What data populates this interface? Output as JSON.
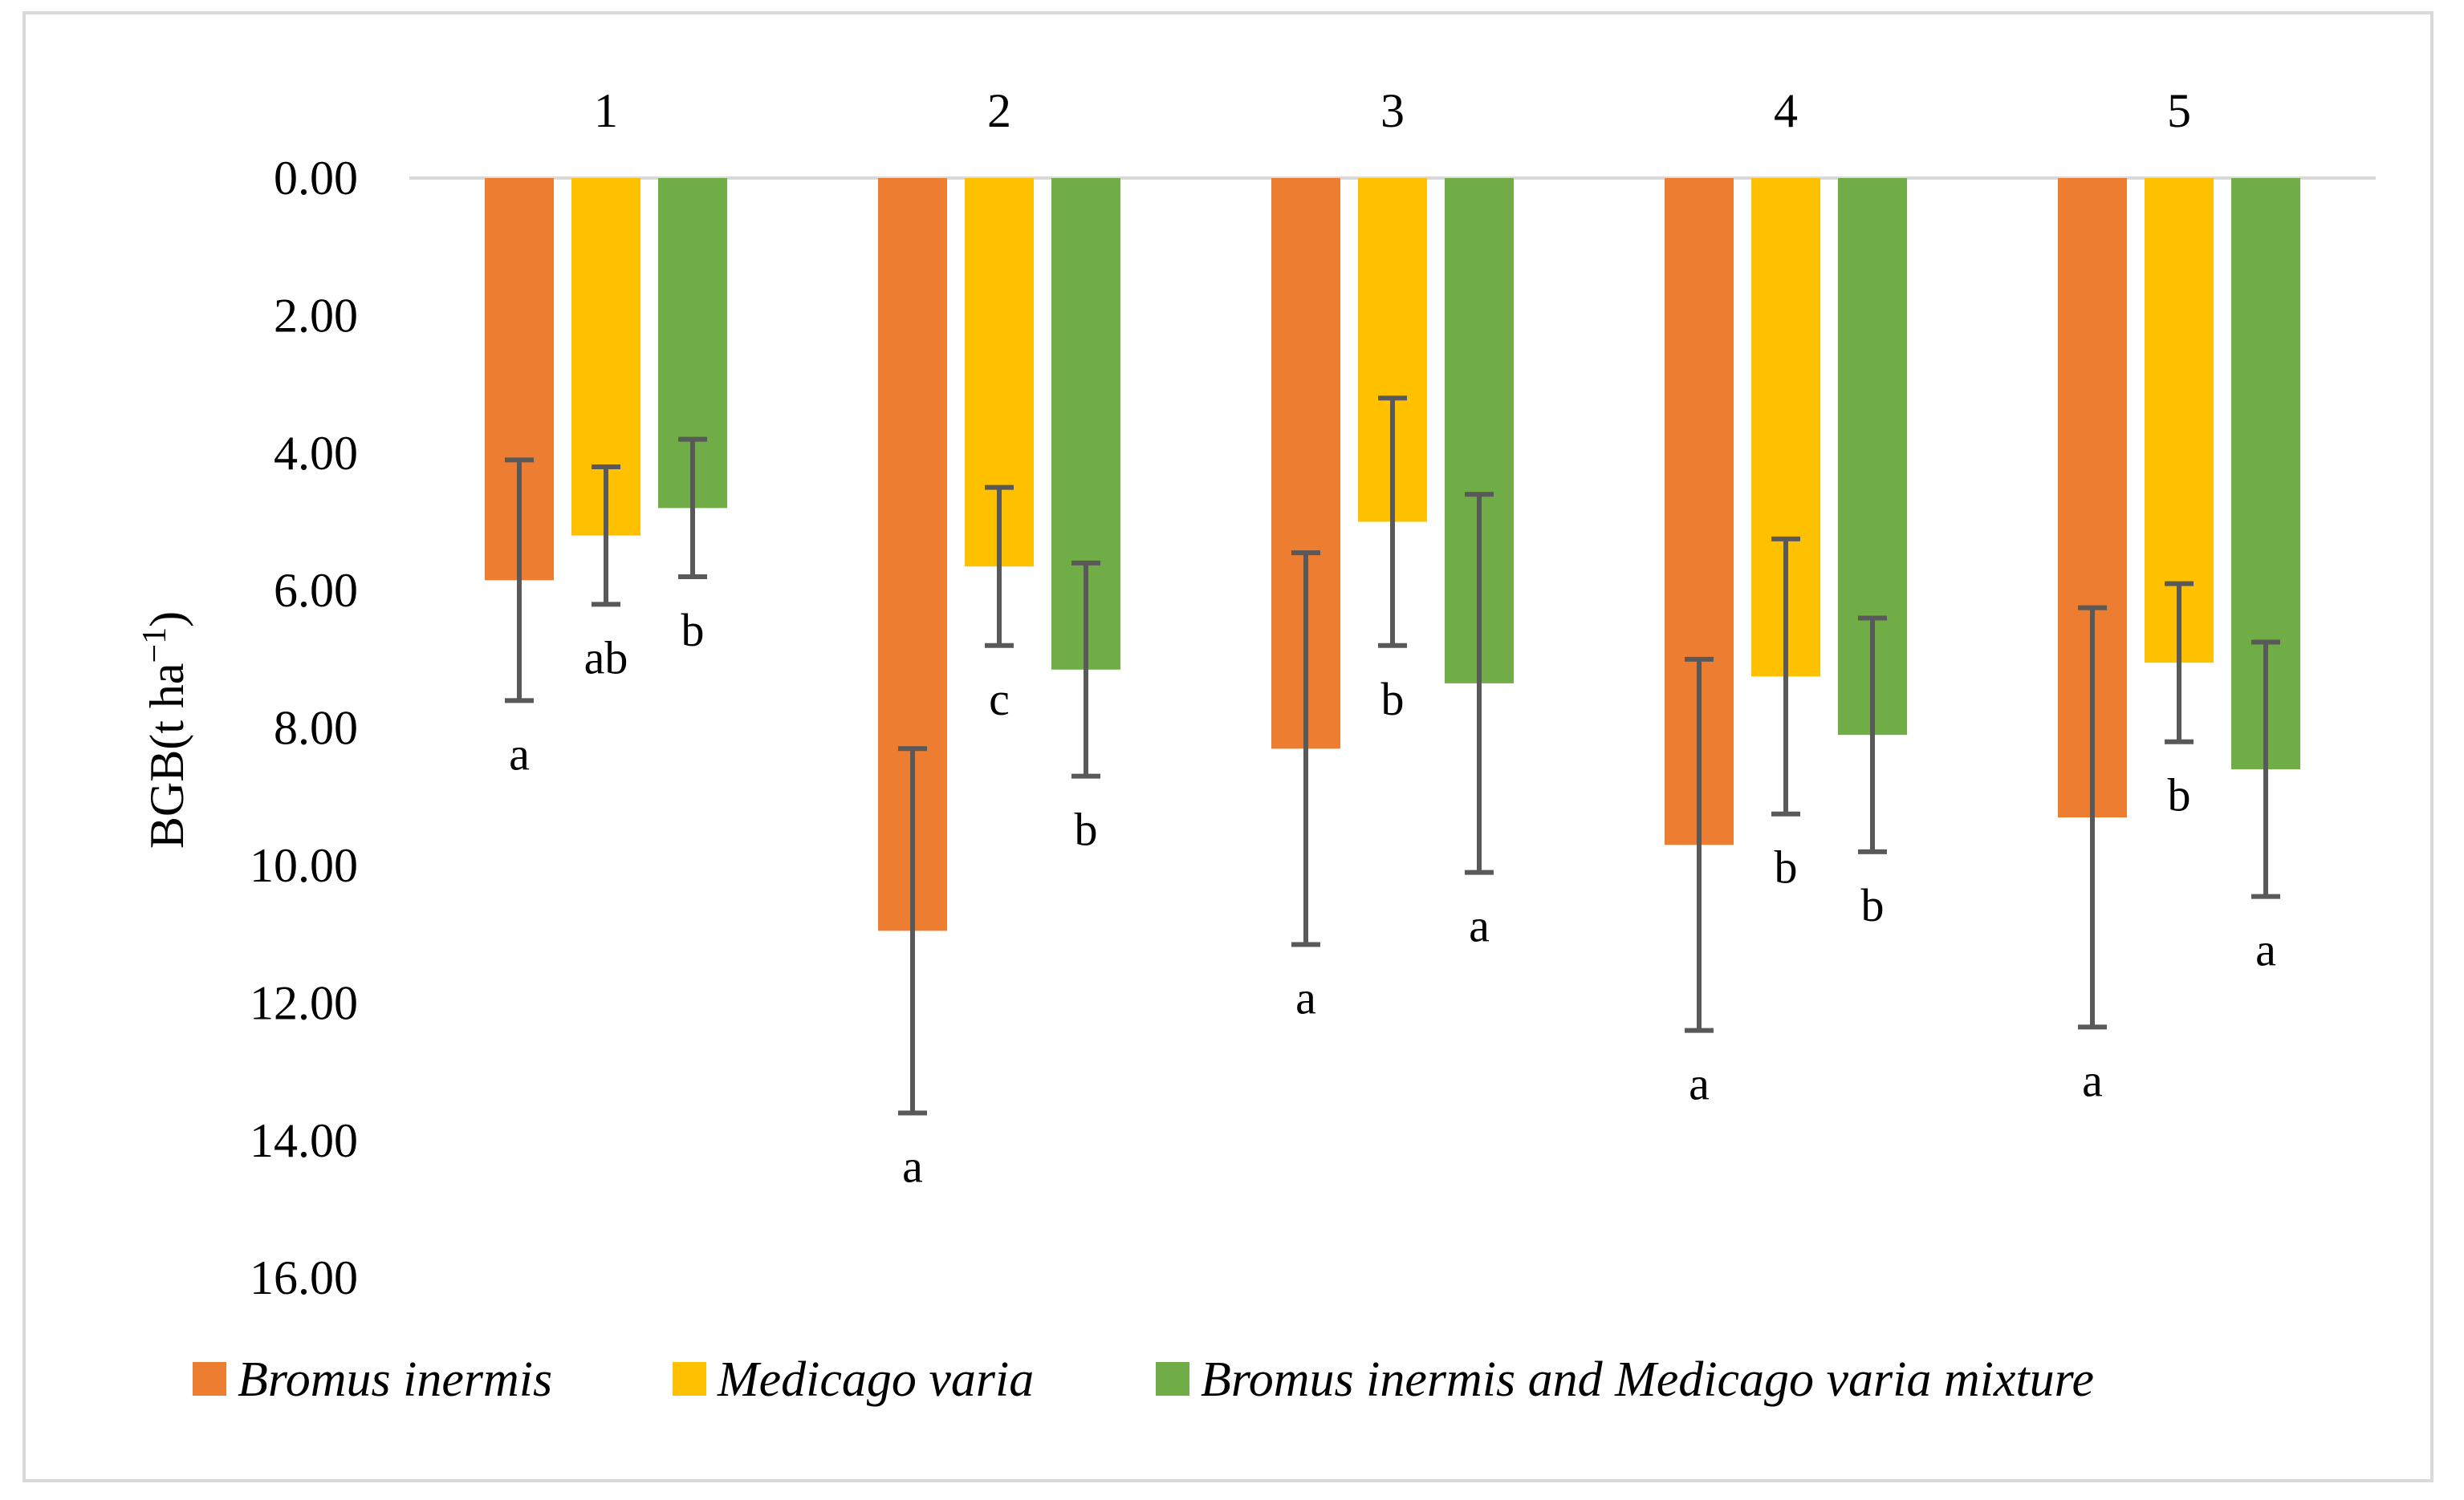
{
  "chart_data": {
    "type": "bar",
    "orientation": "inverted-y",
    "categories": [
      "1",
      "2",
      "3",
      "4",
      "5"
    ],
    "ylabel": "BGB(t ha",
    "ylabel_superscript": "−1",
    "ylabel_close": ")",
    "ylim": [
      0,
      16
    ],
    "yticks": [
      "0.00",
      "2.00",
      "4.00",
      "6.00",
      "8.00",
      "10.00",
      "12.00",
      "14.00",
      "16.00"
    ],
    "grid": false,
    "legend_position": "bottom",
    "series": [
      {
        "name": "Bromus inermis",
        "color": "#ed7d31",
        "values": [
          5.85,
          10.95,
          8.3,
          9.7,
          9.3
        ],
        "errors": [
          1.75,
          2.65,
          2.85,
          2.7,
          3.05
        ],
        "significance": [
          "a",
          "a",
          "a",
          "a",
          "a"
        ]
      },
      {
        "name": "Medicago varia",
        "color": "#ffc000",
        "values": [
          5.2,
          5.65,
          5.0,
          7.25,
          7.05
        ],
        "errors": [
          1.0,
          1.15,
          1.8,
          2.0,
          1.15
        ],
        "significance": [
          "ab",
          "c",
          "b",
          "b",
          "b"
        ]
      },
      {
        "name": "Bromus inermis and Medicago varia mixture",
        "color": "#70ad47",
        "values": [
          4.8,
          7.15,
          7.35,
          8.1,
          8.6
        ],
        "errors": [
          1.0,
          1.55,
          2.75,
          1.7,
          1.85
        ],
        "significance": [
          "b",
          "b",
          "a",
          "b",
          "a"
        ]
      }
    ]
  }
}
